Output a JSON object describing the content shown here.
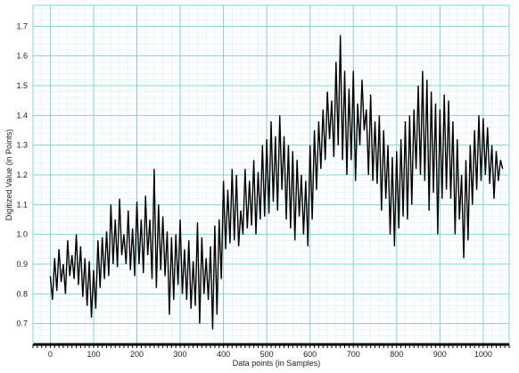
{
  "chart_data": {
    "type": "line",
    "xlabel": "Data points (in Samples)",
    "ylabel": "Digitized Value (in Points)",
    "xlim": [
      -40,
      1060
    ],
    "ylim": [
      0.63,
      1.77
    ],
    "x_ticks": [
      0,
      100,
      200,
      300,
      400,
      500,
      600,
      700,
      800,
      900,
      1000
    ],
    "y_ticks": [
      0.7,
      0.8,
      0.9,
      1.0,
      1.1,
      1.2,
      1.3,
      1.4,
      1.5,
      1.6,
      1.7
    ],
    "x_tick_labels": [
      "0",
      "100",
      "200",
      "300",
      "400",
      "500",
      "600",
      "700",
      "800",
      "900",
      "1000"
    ],
    "y_tick_labels": [
      "0.7",
      "0.8",
      "0.9",
      "1.0",
      "1.1",
      "1.2",
      "1.3",
      "1.4",
      "1.5",
      "1.6",
      "1.7"
    ],
    "grid": true,
    "legend": "none",
    "colors": {
      "grid": "#7ed3dd",
      "line": "#000000",
      "axis": "#000000"
    },
    "series": [
      {
        "x_start": 0,
        "x_step": 5,
        "values": [
          0.86,
          0.78,
          0.92,
          0.81,
          0.95,
          0.84,
          0.9,
          0.8,
          0.98,
          0.86,
          0.93,
          0.85,
          1.0,
          0.83,
          0.96,
          0.79,
          0.92,
          0.76,
          0.91,
          0.72,
          0.88,
          0.75,
          0.98,
          0.82,
          0.99,
          0.85,
          1.01,
          0.86,
          1.1,
          0.9,
          1.05,
          0.89,
          1.12,
          0.93,
          1.0,
          0.9,
          1.08,
          0.88,
          1.02,
          0.86,
          1.11,
          0.9,
          1.05,
          0.87,
          1.13,
          0.93,
          1.05,
          0.85,
          1.22,
          0.82,
          1.1,
          0.88,
          1.06,
          0.86,
          1.01,
          0.73,
          0.99,
          0.78,
          1.0,
          0.83,
          1.05,
          0.8,
          0.95,
          0.78,
          0.98,
          0.75,
          0.91,
          0.76,
          1.04,
          0.7,
          0.99,
          0.8,
          0.92,
          0.78,
          0.96,
          0.68,
          1.03,
          0.73,
          1.05,
          0.85,
          1.18,
          0.95,
          1.15,
          0.97,
          1.22,
          0.98,
          1.2,
          0.96,
          1.08,
          1.0,
          1.22,
          1.02,
          1.18,
          1.03,
          1.25,
          1.0,
          1.21,
          1.05,
          1.3,
          1.06,
          1.32,
          1.07,
          1.38,
          1.11,
          1.33,
          1.08,
          1.4,
          1.15,
          1.33,
          1.05,
          1.3,
          1.02,
          1.28,
          0.98,
          1.25,
          1.06,
          1.2,
          1.0,
          1.18,
          0.96,
          1.3,
          1.05,
          1.35,
          1.15,
          1.38,
          1.22,
          1.42,
          1.25,
          1.48,
          1.32,
          1.45,
          1.26,
          1.58,
          1.3,
          1.67,
          1.25,
          1.55,
          1.2,
          1.49,
          1.25,
          1.55,
          1.18,
          1.44,
          1.3,
          1.52,
          1.35,
          1.42,
          1.2,
          1.47,
          1.18,
          1.38,
          1.17,
          1.4,
          1.08,
          1.35,
          1.12,
          1.3,
          1.0,
          1.26,
          0.96,
          1.28,
          1.02,
          1.32,
          1.06,
          1.38,
          1.05,
          1.4,
          1.1,
          1.42,
          1.22,
          1.5,
          1.2,
          1.55,
          1.18,
          1.52,
          1.08,
          1.48,
          1.14,
          1.44,
          1.0,
          1.42,
          1.12,
          1.47,
          1.15,
          1.45,
          1.12,
          1.38,
          1.0,
          1.32,
          1.05,
          1.2,
          0.92,
          1.25,
          0.98,
          1.3,
          1.1,
          1.35,
          1.15,
          1.4,
          1.18,
          1.39,
          1.2,
          1.36,
          1.17,
          1.3,
          1.12,
          1.28,
          1.18,
          1.25,
          1.22
        ]
      }
    ]
  }
}
